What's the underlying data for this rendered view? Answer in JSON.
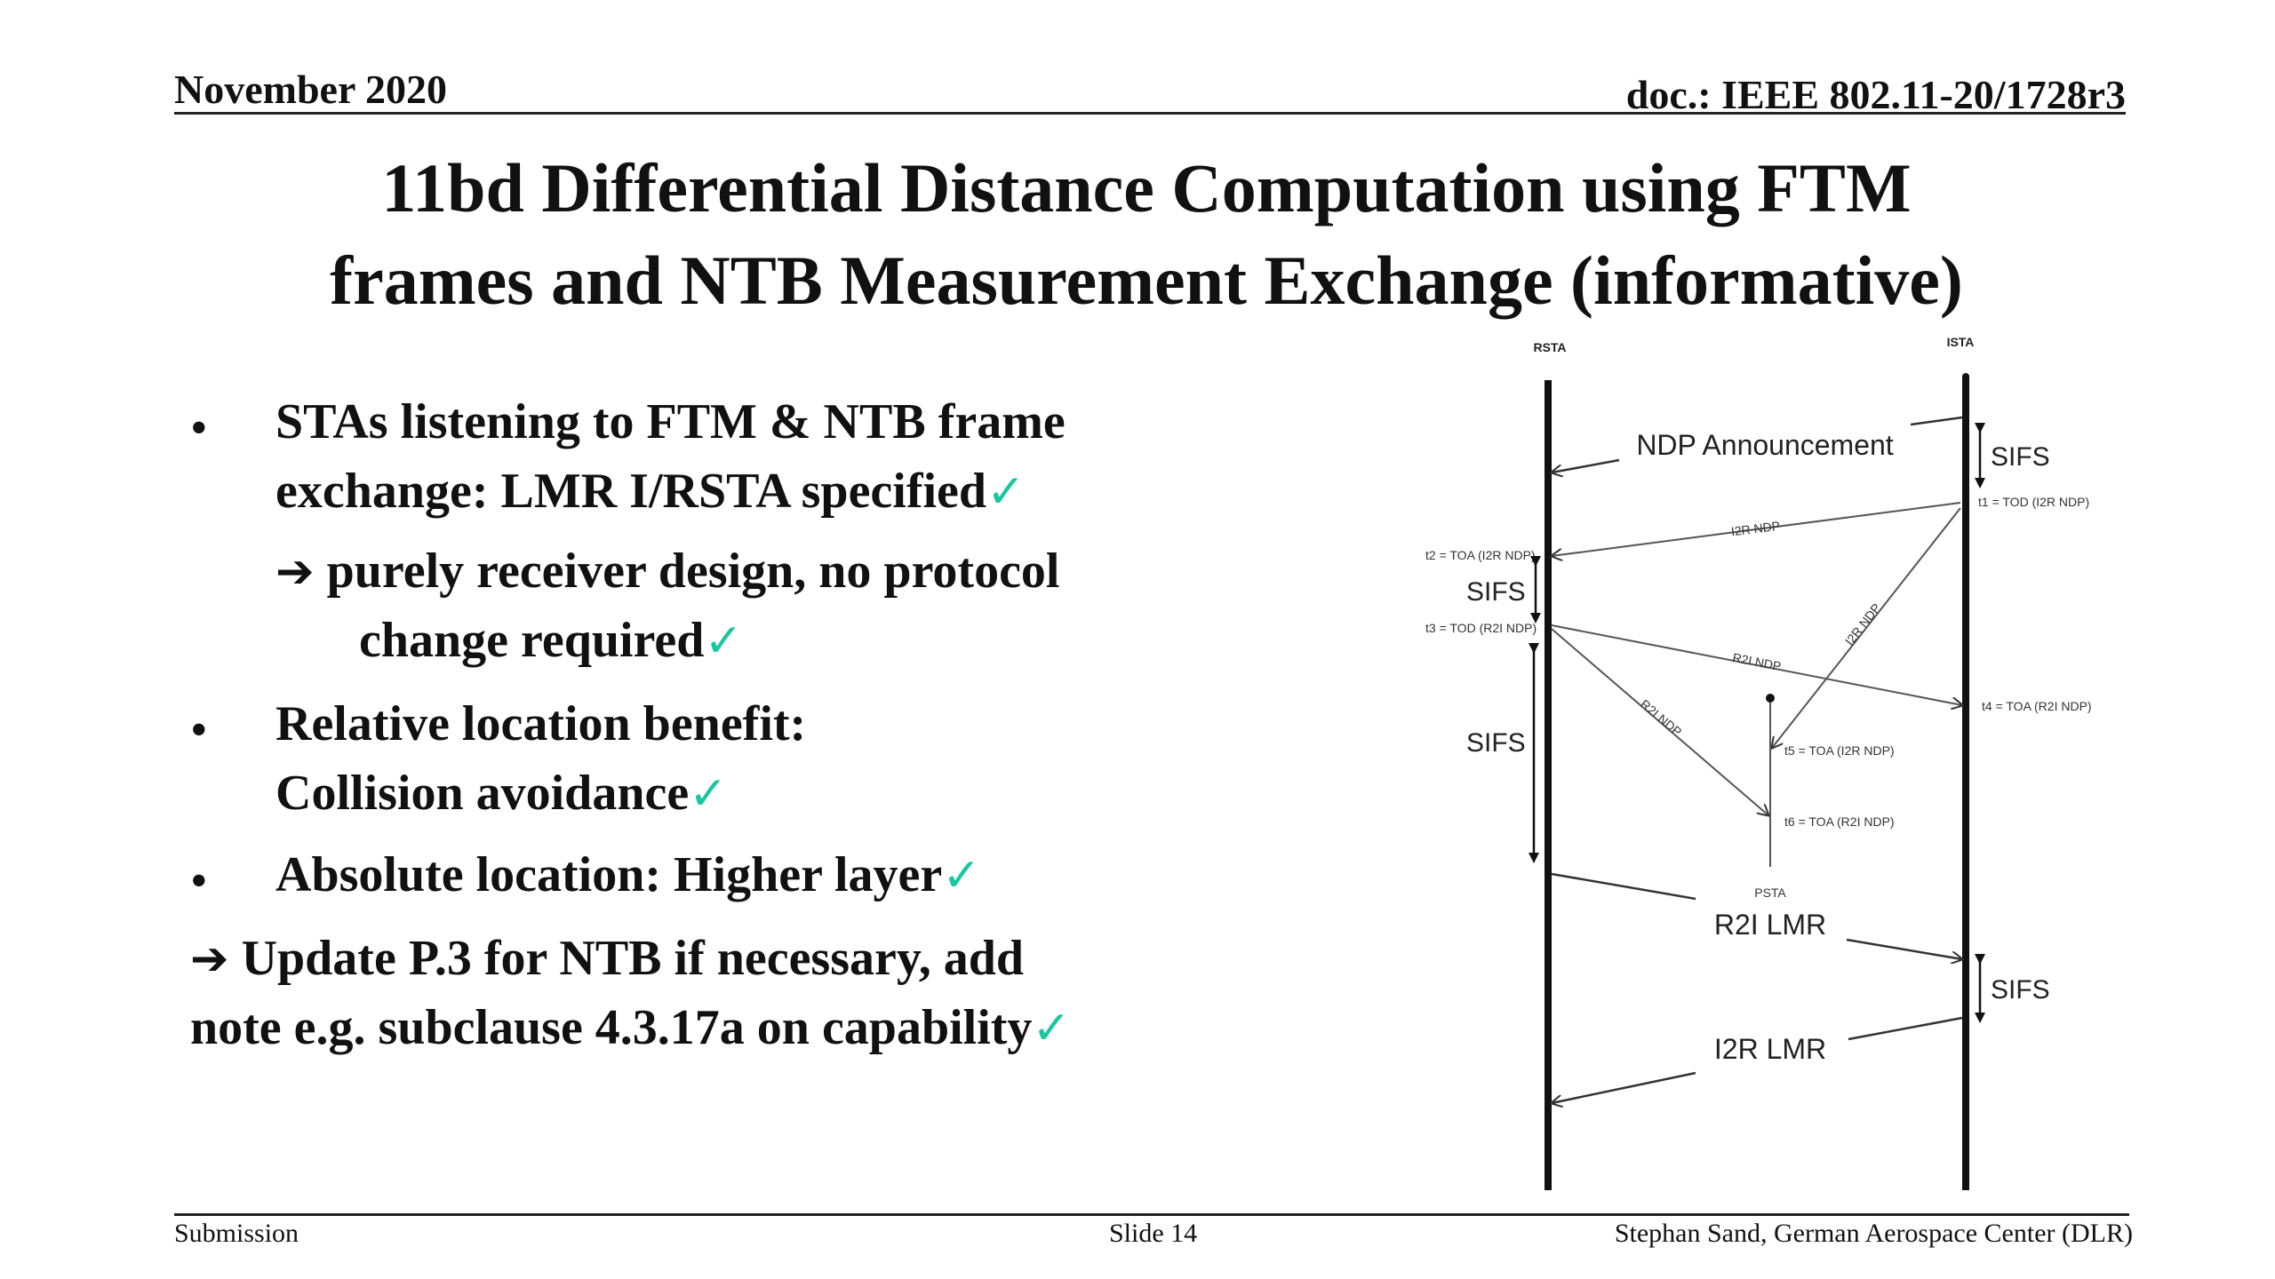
{
  "header": {
    "date": "November 2020",
    "doc": "doc.: IEEE 802.11-20/1728r3"
  },
  "title": {
    "line1": "11bd Differential Distance Computation using FTM",
    "line2": "frames and NTB Measurement Exchange (informative)"
  },
  "bullets": [
    {
      "line1": "STAs listening to FTM & NTB frame",
      "line2": "exchange: LMR I/RSTA specified"
    },
    {
      "line1": "purely receiver design, no protocol",
      "line2": "change required"
    },
    {
      "line1": "Relative location benefit:",
      "line2": "Collision avoidance"
    },
    {
      "line1": "Absolute location: Higher layer"
    },
    {
      "line1": "Update P.3 for NTB if necessary, add",
      "line2": "note e.g. subclause 4.3.17a on capability"
    }
  ],
  "symbols": {
    "bullet": "•",
    "arrow": "➔",
    "check": "✓"
  },
  "diagram": {
    "rsta_label": "RSTA",
    "ista_label": "ISTA",
    "psta_label": "PSTA",
    "ndp_announcement": "NDP Announcement",
    "sifs": "SIFS",
    "i2r_ndp": "I2R NDP",
    "r2i_ndp": "R2I NDP",
    "t1": "t1 = TOD (I2R NDP)",
    "t2": "t2 = TOA (I2R NDP)",
    "t3": "t3 = TOD (R2I NDP)",
    "t4": "t4 = TOA (R2I NDP)",
    "t5": "t5 = TOA (I2R NDP)",
    "t6": "t6 = TOA (R2I NDP)",
    "r2i_lmr": "R2I LMR",
    "i2r_lmr": "I2R LMR"
  },
  "footer": {
    "left": "Submission",
    "center": "Slide 14",
    "right": "Stephan Sand, German Aerospace Center (DLR)"
  },
  "colors": {
    "check": "#17c7a0",
    "text": "#111111",
    "diagram_line": "#555555"
  }
}
